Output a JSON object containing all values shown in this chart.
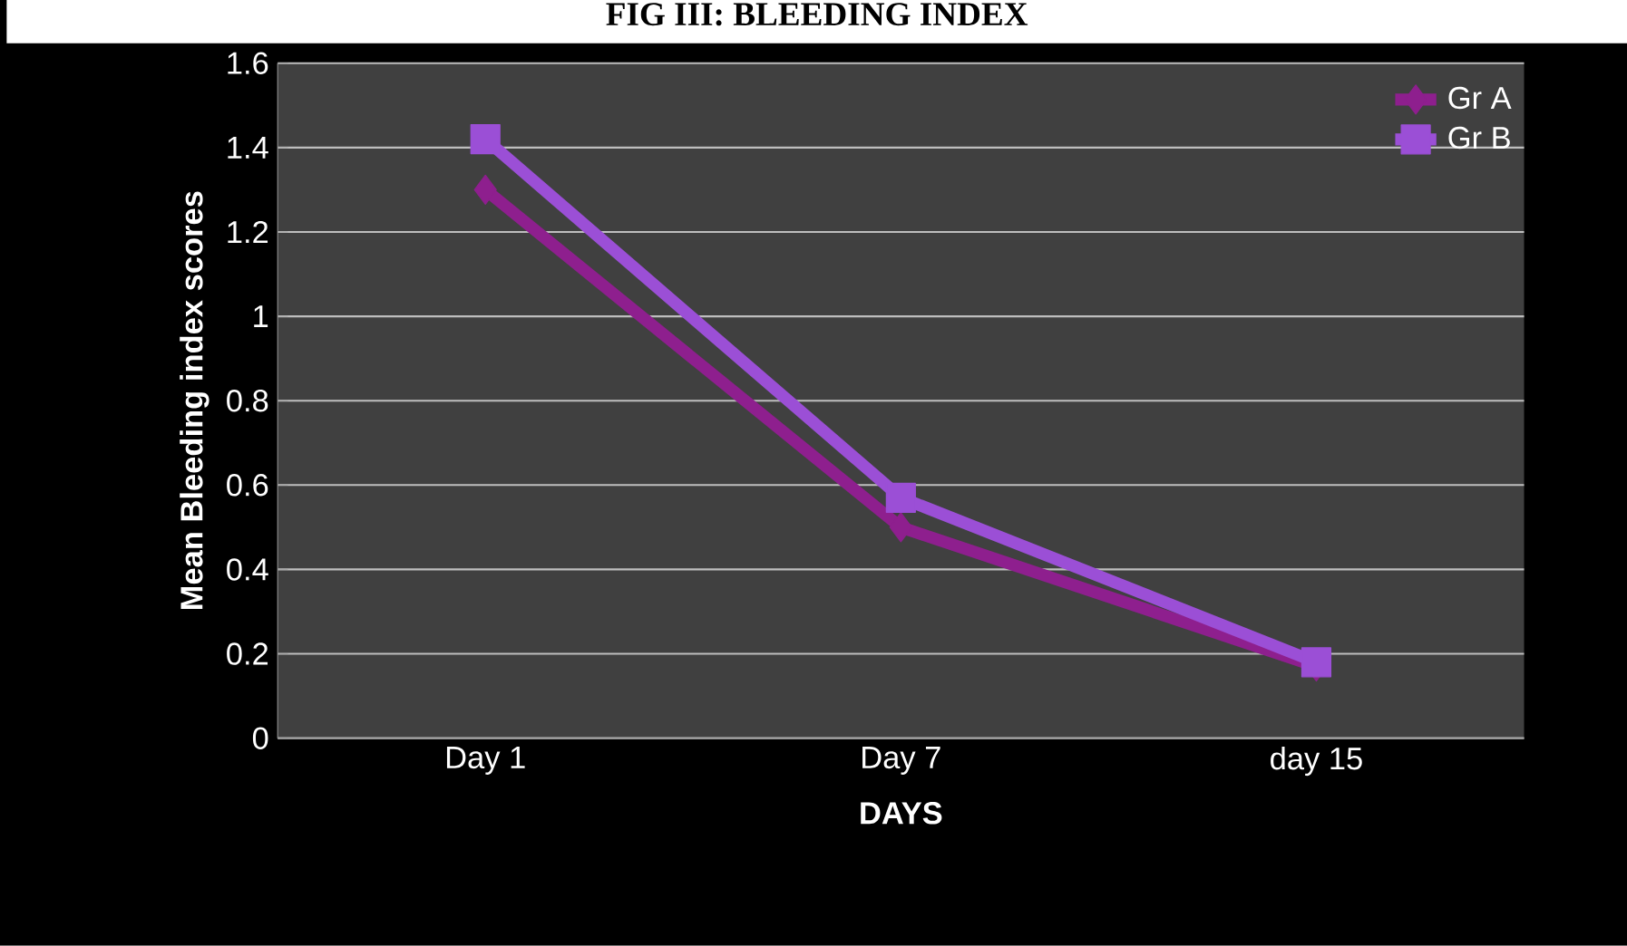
{
  "chart_data": {
    "type": "line",
    "title": "FIG III: BLEEDING INDEX",
    "xlabel": "DAYS",
    "ylabel": "Mean Bleeding index scores",
    "categories": [
      "Day 1",
      "Day 7",
      "day 15"
    ],
    "series": [
      {
        "name": "Gr A",
        "color": "#8e1f8e",
        "marker": "diamond",
        "values": [
          1.3,
          0.5,
          0.17
        ]
      },
      {
        "name": "Gr B",
        "color": "#9b4fd6",
        "marker": "square",
        "values": [
          1.42,
          0.57,
          0.18
        ]
      }
    ],
    "ylim": [
      0,
      1.6
    ],
    "yticks": [
      0,
      0.2,
      0.4,
      0.6,
      0.8,
      1,
      1.2,
      1.4,
      1.6
    ],
    "grid": "y",
    "legend": "top right",
    "line_style": "solid"
  }
}
